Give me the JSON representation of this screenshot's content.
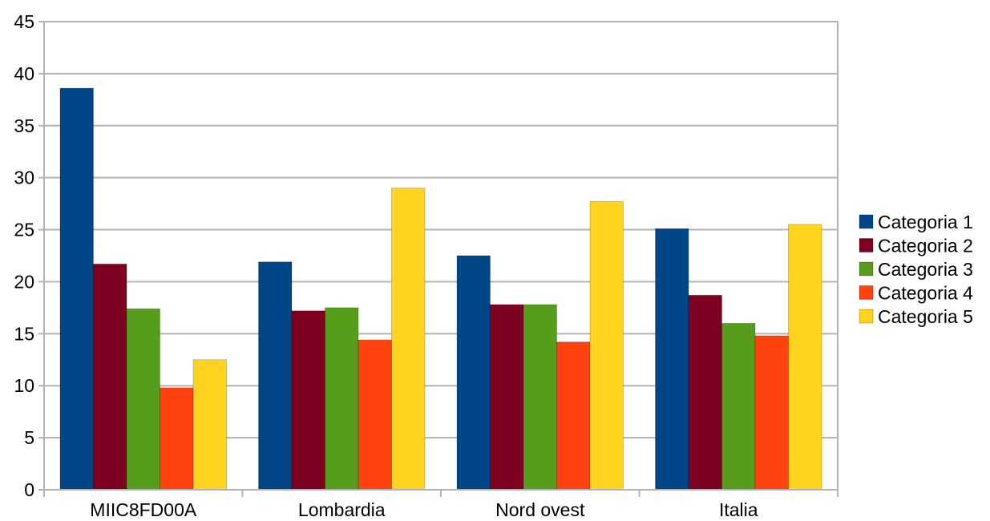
{
  "chart_data": {
    "type": "bar",
    "title": "",
    "xlabel": "",
    "ylabel": "",
    "ylim": [
      0,
      45
    ],
    "ytick_step": 5,
    "grid": true,
    "legend_position": "right",
    "categories": [
      "MIIC8FD00A",
      "Lombardia",
      "Nord ovest",
      "Italia"
    ],
    "series": [
      {
        "name": "Categoria 1",
        "color": "#004586",
        "values": [
          38.6,
          21.9,
          22.5,
          25.1
        ]
      },
      {
        "name": "Categoria 2",
        "color": "#7e0021",
        "values": [
          21.7,
          17.2,
          17.8,
          18.7
        ]
      },
      {
        "name": "Categoria 3",
        "color": "#579d1c",
        "values": [
          17.4,
          17.5,
          17.8,
          16.0
        ]
      },
      {
        "name": "Categoria 4",
        "color": "#ff420e",
        "values": [
          9.8,
          14.4,
          14.2,
          14.8
        ]
      },
      {
        "name": "Categoria 5",
        "color": "#ffd320",
        "values": [
          12.5,
          29.0,
          27.7,
          25.5
        ]
      }
    ]
  }
}
